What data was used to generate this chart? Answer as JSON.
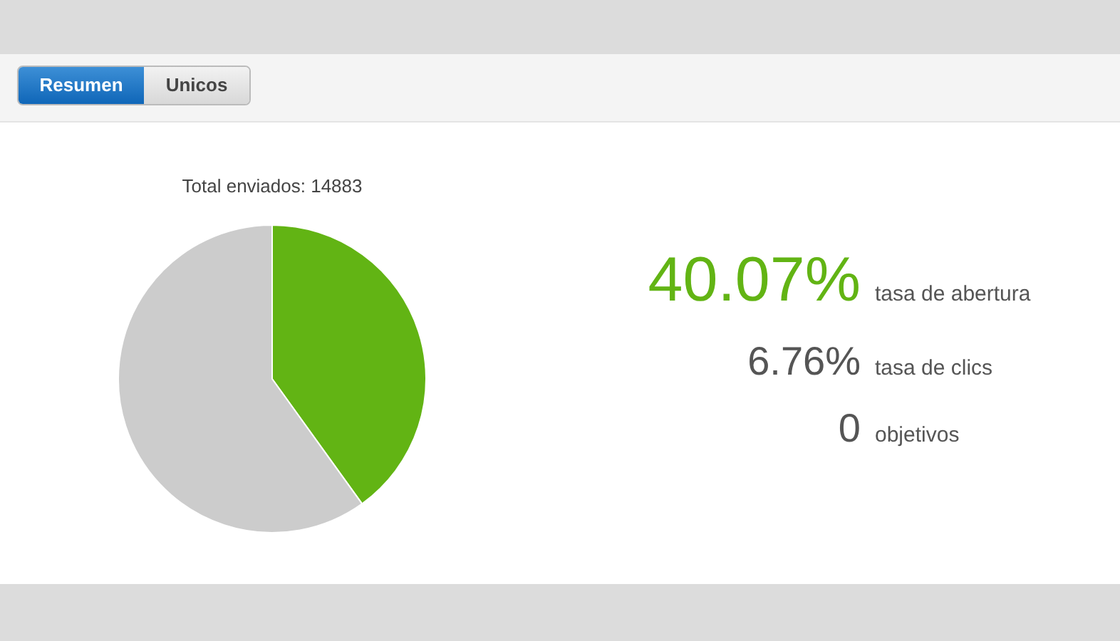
{
  "chart_data": [
    {
      "type": "other",
      "annotations": [
        "Resumen",
        "Unicos"
      ]
    },
    {
      "type": "pie",
      "title": "Total enviados: 14883",
      "categories": [
        null,
        null
      ],
      "values": [
        40.07,
        59.93
      ],
      "colors": [
        "#62b414",
        "#cccccc"
      ]
    },
    {
      "type": "other",
      "annotations": [
        "40.07%",
        "tasa de abertura",
        "6.76%",
        "tasa de clics",
        "0",
        "objetivos"
      ]
    }
  ]
}
